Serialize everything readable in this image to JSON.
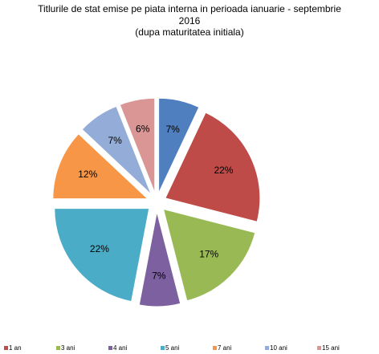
{
  "chart_data": {
    "type": "pie",
    "title": [
      "Titlurile de stat  emise pe piata interna  in perioada ianuarie - septembrie",
      "2016",
      "(dupa maturitatea initiala)"
    ],
    "categories": [
      null,
      "1 an",
      "3 ani",
      "4 ani",
      "5 ani",
      "7 ani",
      "10 ani",
      "15 ani"
    ],
    "values": [
      7,
      22,
      17,
      7,
      22,
      12,
      7,
      6
    ],
    "value_labels": [
      "7%",
      "22%",
      "17%",
      "7%",
      "22%",
      "12%",
      "7%",
      "6%"
    ],
    "colors": [
      "#4f7fbf",
      "#be4b48",
      "#98b954",
      "#7d60a0",
      "#4aacc6",
      "#f79646",
      "#94acd8",
      "#d99694"
    ]
  }
}
